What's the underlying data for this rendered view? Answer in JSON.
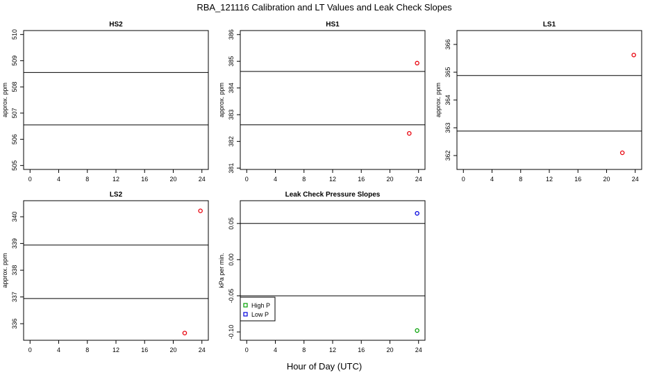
{
  "figure": {
    "title": "RBA_121116  Calibration and LT Values and Leak Check Slopes",
    "xlabel": "Hour of Day (UTC)"
  },
  "colors": {
    "red": "#e8000b",
    "blue": "#0000dd",
    "green": "#00a000",
    "line": "#000000"
  },
  "chart_data": [
    {
      "type": "scatter",
      "title": "HS2",
      "ylabel": "approx. ppm",
      "xlim": [
        -0.9,
        24.9
      ],
      "ylim": [
        504.85,
        510.15
      ],
      "xticks": [
        0,
        4,
        8,
        12,
        16,
        20,
        24
      ],
      "yticks": [
        505,
        506,
        507,
        508,
        509,
        510
      ],
      "hlines": [
        508.55,
        506.55
      ],
      "series": [
        {
          "color": "red",
          "points": []
        }
      ]
    },
    {
      "type": "scatter",
      "title": "HS1",
      "ylabel": "approx. ppm",
      "xlim": [
        -0.9,
        24.9
      ],
      "ylim": [
        380.95,
        386.15
      ],
      "xticks": [
        0,
        4,
        8,
        12,
        16,
        20,
        24
      ],
      "yticks": [
        381,
        382,
        383,
        384,
        385,
        386
      ],
      "hlines": [
        384.62,
        382.62
      ],
      "series": [
        {
          "color": "red",
          "points": [
            [
              22.7,
              382.3
            ],
            [
              23.8,
              384.93
            ]
          ]
        }
      ]
    },
    {
      "type": "scatter",
      "title": "LS1",
      "ylabel": "approx. ppm",
      "xlim": [
        -0.9,
        24.9
      ],
      "ylim": [
        361.5,
        366.5
      ],
      "xticks": [
        0,
        4,
        8,
        12,
        16,
        20,
        24
      ],
      "yticks": [
        362,
        363,
        364,
        365,
        366
      ],
      "hlines": [
        364.88,
        362.88
      ],
      "series": [
        {
          "color": "red",
          "points": [
            [
              22.2,
              362.1
            ],
            [
              23.8,
              365.62
            ]
          ]
        }
      ]
    },
    {
      "type": "scatter",
      "title": "LS2",
      "ylabel": "approx. ppm",
      "xlim": [
        -0.9,
        24.9
      ],
      "ylim": [
        335.38,
        340.6
      ],
      "xticks": [
        0,
        4,
        8,
        12,
        16,
        20,
        24
      ],
      "yticks": [
        336,
        337,
        338,
        339,
        340
      ],
      "hlines": [
        338.94,
        336.94
      ],
      "series": [
        {
          "color": "red",
          "points": [
            [
              21.6,
              335.65
            ],
            [
              23.8,
              340.22
            ]
          ]
        }
      ]
    },
    {
      "type": "scatter",
      "title": "Leak Check Pressure Slopes",
      "ylabel": "kPa per min.",
      "xlim": [
        -0.9,
        24.9
      ],
      "ylim": [
        -0.1115,
        0.0815
      ],
      "xticks": [
        0,
        4,
        8,
        12,
        16,
        20,
        24
      ],
      "yticks": [
        -0.1,
        -0.05,
        0.0,
        0.05
      ],
      "ytick_labels": [
        "-0.10",
        "-0.05",
        "0.00",
        "0.05"
      ],
      "hlines": [
        0.05,
        -0.05
      ],
      "series": [
        {
          "name": "High P",
          "color": "green",
          "points": [
            [
              23.8,
              -0.098
            ]
          ]
        },
        {
          "name": "Low P",
          "color": "blue",
          "points": [
            [
              23.8,
              0.064
            ]
          ]
        }
      ],
      "legend": "bottom-left"
    }
  ]
}
